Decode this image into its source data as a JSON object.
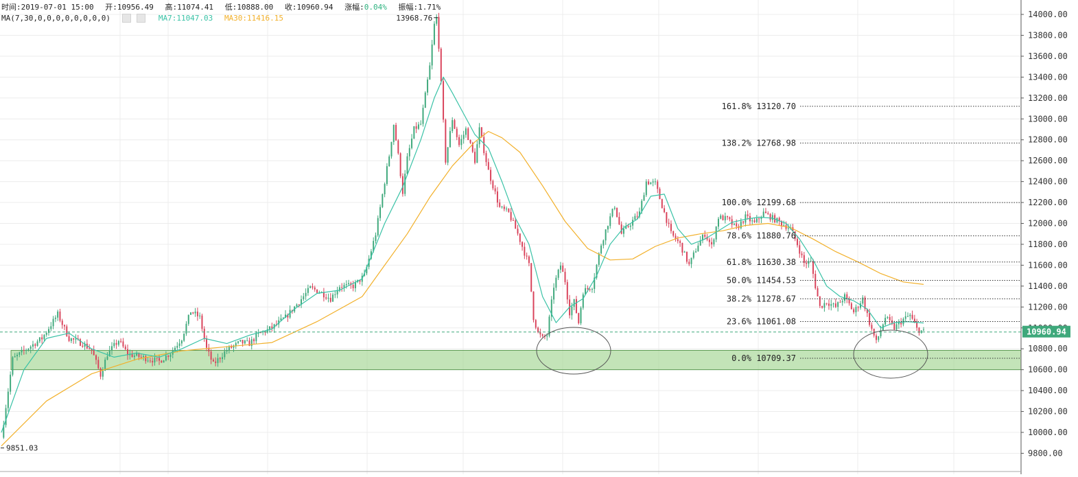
{
  "header": {
    "time_label": "时间:",
    "time_value": "2019-07-01 15:00",
    "open_label": "开:",
    "open_value": "10956.49",
    "high_label": "高:",
    "high_value": "11074.41",
    "low_label": "低:",
    "low_value": "10888.00",
    "close_label": "收:",
    "close_value": "10960.94",
    "change_label": "涨幅:",
    "change_value": "0.04%",
    "amp_label": "振幅:",
    "amp_value": "1.71%",
    "ma_params": "MA(7,30,0,0,0,0,0,0,0,0)",
    "ma7_text": "MA7:11047.03",
    "ma30_text": "MA30:11416.15"
  },
  "colors": {
    "up": "#3ea87b",
    "down": "#d9425a",
    "ma7": "#39c2a6",
    "ma30": "#f2b02a",
    "zone": "#a9d99a",
    "price_tag": "#3ea87b",
    "grid": "#ececec"
  },
  "chart_data": {
    "type": "candlestick",
    "ylim": [
      9660,
      14100
    ],
    "yticks": [
      9800,
      10000,
      10200,
      10400,
      10600,
      10800,
      11000,
      11200,
      11400,
      11600,
      11800,
      12000,
      12200,
      12400,
      12600,
      12800,
      13000,
      13200,
      13400,
      13600,
      13800,
      14000
    ],
    "ytick_labels": [
      "9800.00",
      "10000.00",
      "10200.00",
      "10400.00",
      "10600.00",
      "10800.00",
      "11000.00",
      "11200.00",
      "11400.00",
      "11600.00",
      "11800.00",
      "12000.00",
      "12200.00",
      "12400.00",
      "12600.00",
      "12800.00",
      "13000.00",
      "13200.00",
      "13400.00",
      "13600.00",
      "13800.00",
      "14000.00"
    ],
    "last_price": 10960.94,
    "last_price_label": "10960.94",
    "high_marker": {
      "value": 13968.76,
      "label": "13968.76"
    },
    "low_marker": {
      "value": 9851.03,
      "label": "9851.03"
    },
    "support_zone": [
      10600,
      10785
    ],
    "fibonacci": [
      {
        "label": "161.8% 13120.70",
        "value": 13120.7
      },
      {
        "label": "138.2% 12768.98",
        "value": 12768.98
      },
      {
        "label": "100.0% 12199.68",
        "value": 12199.68
      },
      {
        "label": "78.6% 11880.76",
        "value": 11880.76
      },
      {
        "label": "61.8% 11630.38",
        "value": 11630.38
      },
      {
        "label": "50.0% 11454.53",
        "value": 11454.53
      },
      {
        "label": "38.2% 11278.67",
        "value": 11278.67
      },
      {
        "label": "23.6% 11061.08",
        "value": 11061.08
      },
      {
        "label": "0.0% 10709.37",
        "value": 10709.37
      }
    ],
    "path_points": [
      [
        0,
        9950
      ],
      [
        5,
        10700
      ],
      [
        10,
        10780
      ],
      [
        18,
        10900
      ],
      [
        25,
        11130
      ],
      [
        30,
        10900
      ],
      [
        36,
        10850
      ],
      [
        40,
        10790
      ],
      [
        44,
        10550
      ],
      [
        47,
        10750
      ],
      [
        52,
        10880
      ],
      [
        56,
        10750
      ],
      [
        62,
        10720
      ],
      [
        66,
        10700
      ],
      [
        70,
        10680
      ],
      [
        75,
        10760
      ],
      [
        80,
        10900
      ],
      [
        84,
        11160
      ],
      [
        88,
        11100
      ],
      [
        91,
        10800
      ],
      [
        94,
        10650
      ],
      [
        100,
        10790
      ],
      [
        106,
        10860
      ],
      [
        110,
        10850
      ],
      [
        114,
        10940
      ],
      [
        120,
        11000
      ],
      [
        126,
        11100
      ],
      [
        132,
        11250
      ],
      [
        137,
        11380
      ],
      [
        141,
        11350
      ],
      [
        146,
        11280
      ],
      [
        150,
        11400
      ],
      [
        156,
        11400
      ],
      [
        161,
        11500
      ],
      [
        166,
        11900
      ],
      [
        170,
        12400
      ],
      [
        172,
        12650
      ],
      [
        174,
        12950
      ],
      [
        176,
        12650
      ],
      [
        178,
        12300
      ],
      [
        180,
        12620
      ],
      [
        183,
        12900
      ],
      [
        186,
        12950
      ],
      [
        190,
        13500
      ],
      [
        192,
        13900
      ],
      [
        193,
        13968
      ],
      [
        194,
        13700
      ],
      [
        197,
        12600
      ],
      [
        200,
        13000
      ],
      [
        203,
        12750
      ],
      [
        206,
        12900
      ],
      [
        210,
        12600
      ],
      [
        212,
        12900
      ],
      [
        216,
        12500
      ],
      [
        221,
        12150
      ],
      [
        225,
        12100
      ],
      [
        229,
        11900
      ],
      [
        234,
        11600
      ],
      [
        236,
        11100
      ],
      [
        238,
        10950
      ],
      [
        240,
        10900
      ],
      [
        242,
        10930
      ],
      [
        245,
        11400
      ],
      [
        248,
        11600
      ],
      [
        250,
        11450
      ],
      [
        252,
        11150
      ],
      [
        254,
        11250
      ],
      [
        256,
        11050
      ],
      [
        258,
        11350
      ],
      [
        262,
        11400
      ],
      [
        266,
        11800
      ],
      [
        269,
        12000
      ],
      [
        272,
        12170
      ],
      [
        275,
        11900
      ],
      [
        279,
        12000
      ],
      [
        283,
        12100
      ],
      [
        286,
        12400
      ],
      [
        290,
        12380
      ],
      [
        293,
        12170
      ],
      [
        297,
        11900
      ],
      [
        301,
        11800
      ],
      [
        305,
        11600
      ],
      [
        309,
        11800
      ],
      [
        312,
        11900
      ],
      [
        315,
        11780
      ],
      [
        318,
        12060
      ],
      [
        322,
        12040
      ],
      [
        326,
        11950
      ],
      [
        330,
        12060
      ],
      [
        334,
        12000
      ],
      [
        338,
        12100
      ],
      [
        342,
        12050
      ],
      [
        346,
        12000
      ],
      [
        350,
        11950
      ],
      [
        353,
        11800
      ],
      [
        356,
        11620
      ],
      [
        359,
        11630
      ],
      [
        361,
        11400
      ],
      [
        363,
        11200
      ],
      [
        366,
        11250
      ],
      [
        370,
        11200
      ],
      [
        374,
        11300
      ],
      [
        378,
        11150
      ],
      [
        382,
        11280
      ],
      [
        385,
        11050
      ],
      [
        388,
        10860
      ],
      [
        392,
        11100
      ],
      [
        396,
        11000
      ],
      [
        400,
        11080
      ],
      [
        403,
        11120
      ],
      [
        406,
        10990
      ],
      [
        409,
        10961
      ]
    ],
    "ma7_points": [
      [
        0,
        10000
      ],
      [
        10,
        10600
      ],
      [
        20,
        10900
      ],
      [
        30,
        10950
      ],
      [
        40,
        10800
      ],
      [
        50,
        10720
      ],
      [
        60,
        10760
      ],
      [
        70,
        10720
      ],
      [
        80,
        10800
      ],
      [
        90,
        10900
      ],
      [
        100,
        10850
      ],
      [
        110,
        10930
      ],
      [
        120,
        10990
      ],
      [
        130,
        11180
      ],
      [
        140,
        11330
      ],
      [
        150,
        11360
      ],
      [
        160,
        11470
      ],
      [
        170,
        12000
      ],
      [
        178,
        12350
      ],
      [
        186,
        12800
      ],
      [
        192,
        13200
      ],
      [
        196,
        13400
      ],
      [
        200,
        13250
      ],
      [
        205,
        13050
      ],
      [
        210,
        12850
      ],
      [
        216,
        12720
      ],
      [
        222,
        12400
      ],
      [
        228,
        12050
      ],
      [
        234,
        11800
      ],
      [
        240,
        11300
      ],
      [
        246,
        11050
      ],
      [
        252,
        11200
      ],
      [
        258,
        11280
      ],
      [
        264,
        11500
      ],
      [
        270,
        11800
      ],
      [
        276,
        11960
      ],
      [
        282,
        12040
      ],
      [
        288,
        12260
      ],
      [
        294,
        12280
      ],
      [
        300,
        11950
      ],
      [
        306,
        11800
      ],
      [
        312,
        11850
      ],
      [
        318,
        11930
      ],
      [
        324,
        12010
      ],
      [
        330,
        12040
      ],
      [
        336,
        12060
      ],
      [
        342,
        12050
      ],
      [
        348,
        12000
      ],
      [
        354,
        11850
      ],
      [
        360,
        11650
      ],
      [
        366,
        11400
      ],
      [
        372,
        11300
      ],
      [
        378,
        11260
      ],
      [
        384,
        11180
      ],
      [
        390,
        11000
      ],
      [
        396,
        11050
      ],
      [
        402,
        11060
      ],
      [
        409,
        11047
      ]
    ],
    "ma30_points": [
      [
        0,
        9870
      ],
      [
        20,
        10300
      ],
      [
        40,
        10560
      ],
      [
        60,
        10700
      ],
      [
        80,
        10780
      ],
      [
        100,
        10820
      ],
      [
        120,
        10860
      ],
      [
        140,
        11060
      ],
      [
        160,
        11300
      ],
      [
        170,
        11600
      ],
      [
        180,
        11900
      ],
      [
        190,
        12250
      ],
      [
        200,
        12550
      ],
      [
        210,
        12780
      ],
      [
        216,
        12880
      ],
      [
        222,
        12820
      ],
      [
        230,
        12680
      ],
      [
        240,
        12360
      ],
      [
        250,
        12020
      ],
      [
        260,
        11760
      ],
      [
        270,
        11650
      ],
      [
        280,
        11660
      ],
      [
        290,
        11780
      ],
      [
        300,
        11860
      ],
      [
        310,
        11900
      ],
      [
        320,
        11930
      ],
      [
        330,
        11980
      ],
      [
        340,
        12000
      ],
      [
        350,
        11960
      ],
      [
        360,
        11850
      ],
      [
        370,
        11730
      ],
      [
        380,
        11630
      ],
      [
        390,
        11520
      ],
      [
        400,
        11440
      ],
      [
        409,
        11416
      ]
    ]
  }
}
